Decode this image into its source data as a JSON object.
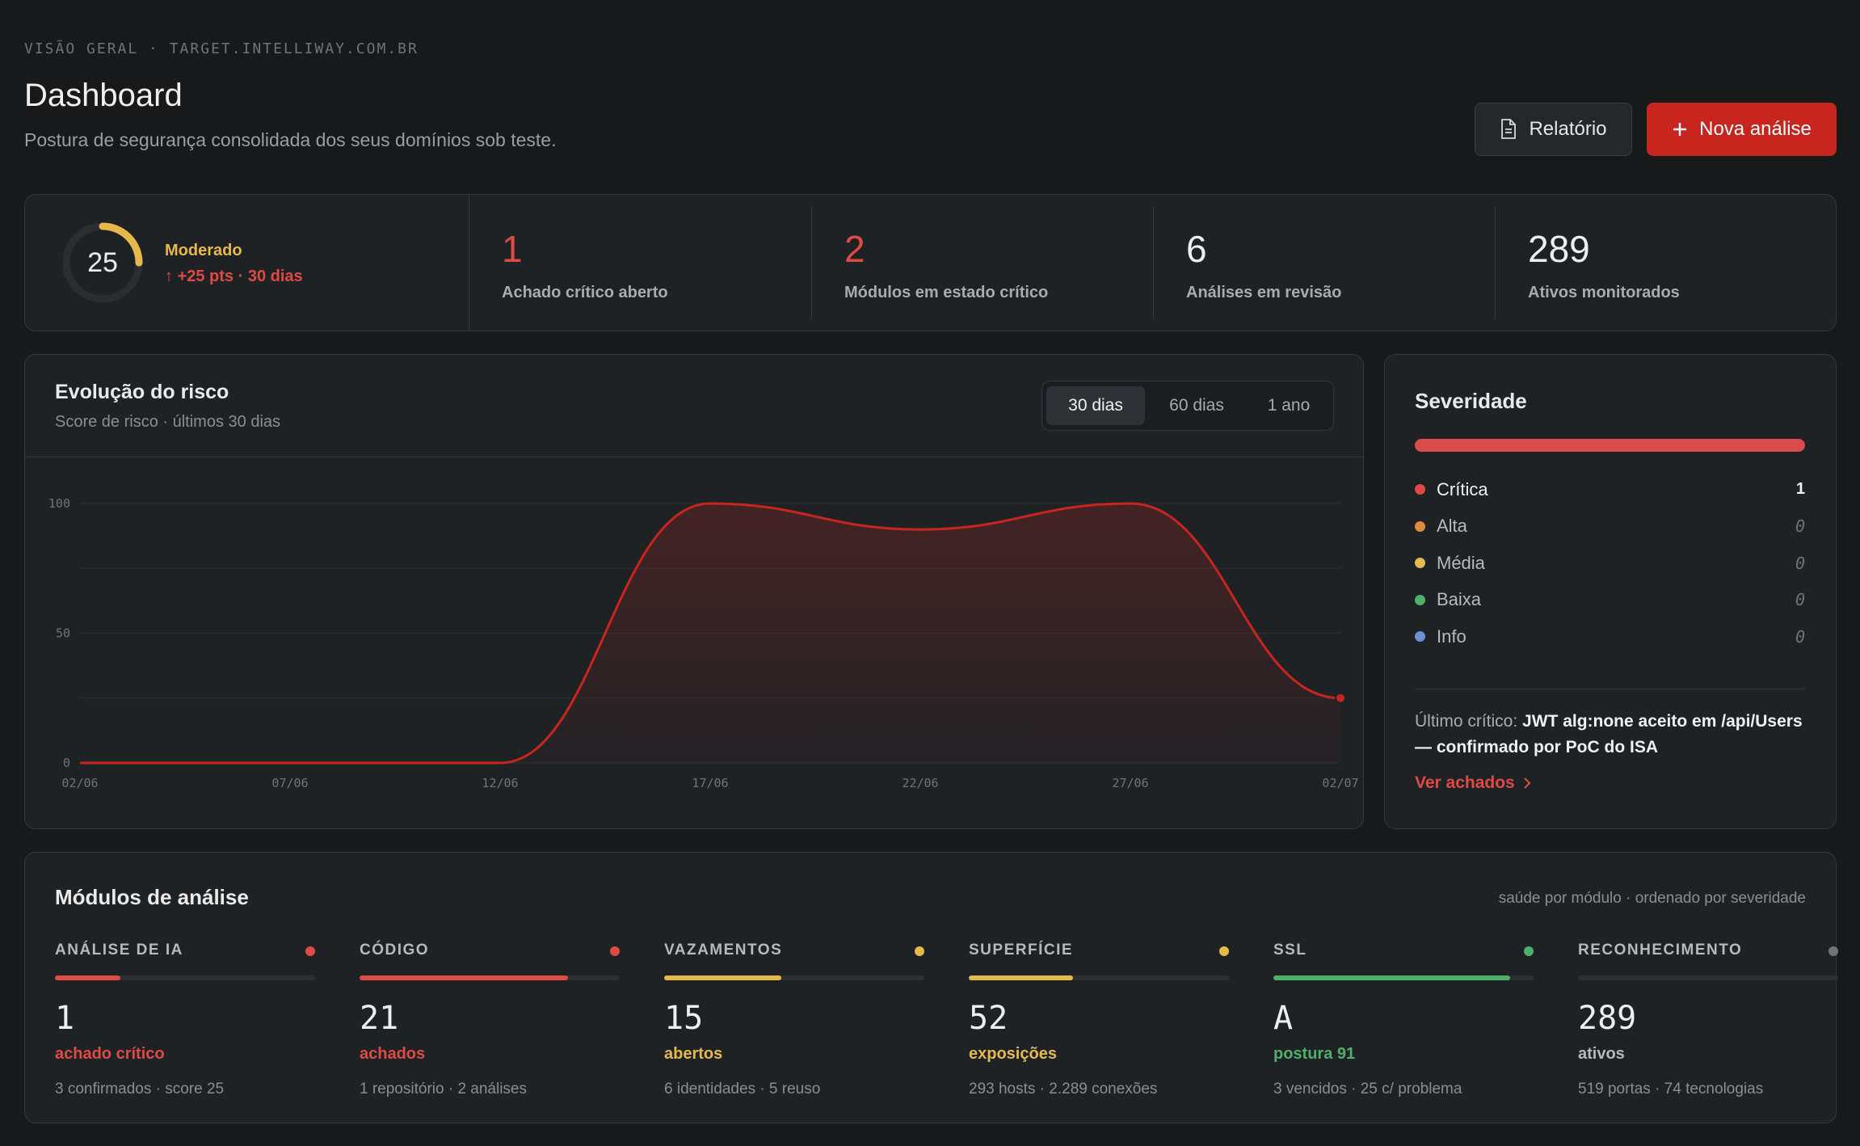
{
  "header": {
    "eyebrow": "VISÃO GERAL · TARGET.INTELLIWAY.COM.BR",
    "title": "Dashboard",
    "subtitle": "Postura de segurança consolidada dos seus domínios sob teste.",
    "report_button": "Relatório",
    "new_analysis_button": "Nova análise"
  },
  "risk": {
    "score": "25",
    "score_fraction": 0.25,
    "level": "Moderado",
    "delta": "+25 pts · 30 dias",
    "gauge_color": "#e6b94a"
  },
  "stats": [
    {
      "value": "1",
      "label": "Achado crítico aberto",
      "color": "#e04a44"
    },
    {
      "value": "2",
      "label": "Módulos em estado crítico",
      "color": "#e04a44"
    },
    {
      "value": "6",
      "label": "Análises em revisão",
      "color": "#eeeeee"
    },
    {
      "value": "289",
      "label": "Ativos monitorados",
      "color": "#eeeeee"
    }
  ],
  "chart_card": {
    "title": "Evolução do risco",
    "subtitle": "Score de risco · últimos 30 dias",
    "ranges": [
      "30 dias",
      "60 dias",
      "1 ano"
    ],
    "active_range": "30 dias"
  },
  "chart_data": {
    "type": "area",
    "title": "Evolução do risco",
    "x": [
      "02/06",
      "07/06",
      "12/06",
      "17/06",
      "22/06",
      "27/06",
      "02/07"
    ],
    "x_tick_labels": [
      "02/06",
      "07/06",
      "12/06",
      "17/06",
      "22/06",
      "27/06",
      "02/07"
    ],
    "series": [
      {
        "values": [
          0,
          0,
          0,
          100,
          90,
          100,
          25
        ],
        "color": "#c8251f"
      }
    ],
    "ylim": [
      0,
      100
    ],
    "y_ticks": [
      "0",
      "50",
      "100"
    ],
    "grid": true
  },
  "severity": {
    "title": "Severidade",
    "items": [
      {
        "name": "Crítica",
        "count": "1",
        "color": "#e04a44",
        "hot": true
      },
      {
        "name": "Alta",
        "count": "0",
        "color": "#e08a3c",
        "hot": false
      },
      {
        "name": "Média",
        "count": "0",
        "color": "#e6b94a",
        "hot": false
      },
      {
        "name": "Baixa",
        "count": "0",
        "color": "#4fae6a",
        "hot": false
      },
      {
        "name": "Info",
        "count": "0",
        "color": "#6d8fd6",
        "hot": false
      }
    ],
    "last_label": "Último crítico:",
    "last_value": "JWT alg:none aceito em /api/Users — confirmado por PoC do ISA",
    "link": "Ver achados"
  },
  "modules": {
    "title": "Módulos de análise",
    "note": "saúde por módulo · ordenado por severidade",
    "items": [
      {
        "name": "ANÁLISE DE IA",
        "value": "1",
        "sub": "achado crítico",
        "foot": "3 confirmados · score 25",
        "color": "#e04a44",
        "dot": "#e04a44",
        "fill": 0.25
      },
      {
        "name": "CÓDIGO",
        "value": "21",
        "sub": "achados",
        "foot": "1 repositório · 2 análises",
        "color": "#e04a44",
        "dot": "#e04a44",
        "fill": 0.8
      },
      {
        "name": "VAZAMENTOS",
        "value": "15",
        "sub": "abertos",
        "foot": "6 identidades · 5 reuso",
        "color": "#e6b94a",
        "dot": "#e6b94a",
        "fill": 0.45
      },
      {
        "name": "SUPERFÍCIE",
        "value": "52",
        "sub": "exposições",
        "foot": "293 hosts · 2.289 conexões",
        "color": "#e6b94a",
        "dot": "#e6b94a",
        "fill": 0.4
      },
      {
        "name": "SSL",
        "value": "A",
        "sub": "postura 91",
        "foot": "3 vencidos · 25 c/ problema",
        "color": "#4fae6a",
        "dot": "#4fae6a",
        "fill": 0.91
      },
      {
        "name": "RECONHECIMENTO",
        "value": "289",
        "sub": "ativos",
        "foot": "519 portas · 74 tecnologias",
        "color": "#b6b9bd",
        "dot": "#6f7479",
        "fill": 0
      }
    ]
  }
}
